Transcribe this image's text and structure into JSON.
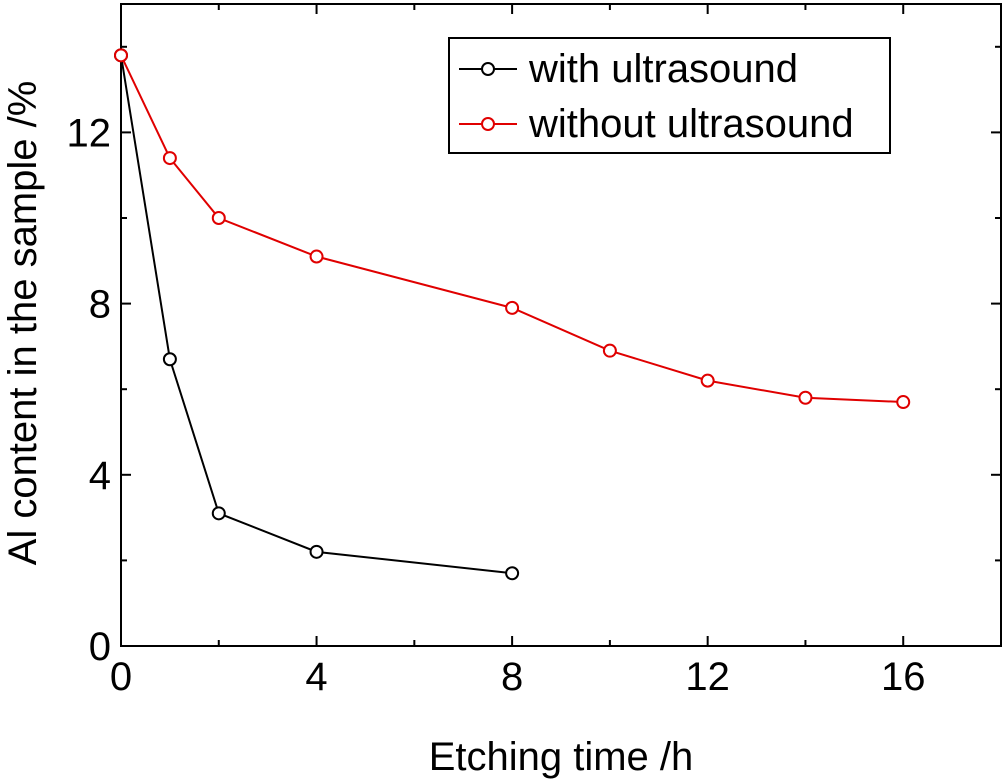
{
  "chart_data": {
    "type": "line",
    "title": "",
    "xlabel": "Etching time /h",
    "ylabel": "Al content in the sample /%",
    "xlim": [
      0,
      18
    ],
    "ylim": [
      0,
      15
    ],
    "x_ticks": [
      0,
      4,
      8,
      12,
      16
    ],
    "y_ticks": [
      0,
      4,
      8,
      12
    ],
    "x_tick_labels": [
      "0",
      "4",
      "8",
      "12",
      "16"
    ],
    "y_tick_labels": [
      "0",
      "4",
      "8",
      "12"
    ],
    "grid": false,
    "legend_position": "top-right",
    "series": [
      {
        "name": "with ultrasound",
        "color": "#000000",
        "marker": "open-circle",
        "x": [
          0,
          1,
          2,
          4,
          8
        ],
        "y": [
          13.8,
          6.7,
          3.1,
          2.2,
          1.7
        ]
      },
      {
        "name": "without ultrasound",
        "color": "#e00000",
        "marker": "open-circle",
        "x": [
          0,
          1,
          2,
          4,
          8,
          10,
          12,
          14,
          16
        ],
        "y": [
          13.8,
          11.4,
          10.0,
          9.1,
          7.9,
          6.9,
          6.2,
          5.8,
          5.7
        ]
      }
    ]
  }
}
